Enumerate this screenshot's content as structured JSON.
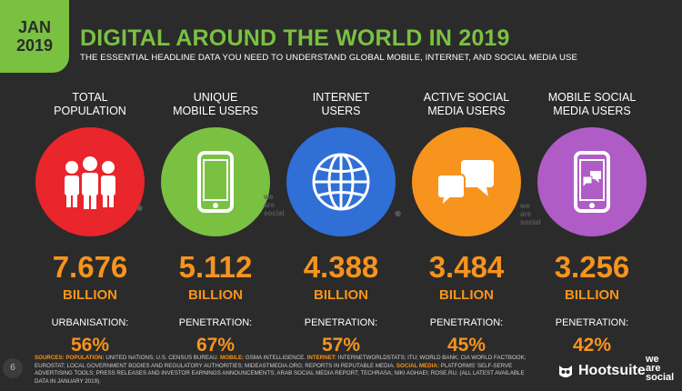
{
  "header": {
    "month": "JAN",
    "year": "2019",
    "title": "DIGITAL AROUND THE WORLD IN 2019",
    "subtitle": "THE ESSENTIAL HEADLINE DATA YOU NEED TO UNDERSTAND GLOBAL MOBILE, INTERNET, AND SOCIAL MEDIA USE"
  },
  "colors": {
    "accent_green": "#7ac142",
    "value_orange": "#f7941d",
    "population_red": "#e8262b",
    "mobile_green": "#7ac142",
    "internet_blue": "#2f6fd6",
    "social_orange": "#f7941d",
    "mobile_social_purple": "#b05cc6"
  },
  "columns": [
    {
      "label_line1": "TOTAL",
      "label_line2": "POPULATION",
      "icon": "people-icon",
      "value": "7.676",
      "unit": "BILLION",
      "metric_label": "URBANISATION:",
      "metric_value": "56%"
    },
    {
      "label_line1": "UNIQUE",
      "label_line2": "MOBILE USERS",
      "icon": "mobile-phone-icon",
      "value": "5.112",
      "unit": "BILLION",
      "metric_label": "PENETRATION:",
      "metric_value": "67%"
    },
    {
      "label_line1": "INTERNET",
      "label_line2": "USERS",
      "icon": "globe-icon",
      "value": "4.388",
      "unit": "BILLION",
      "metric_label": "PENETRATION:",
      "metric_value": "57%"
    },
    {
      "label_line1": "ACTIVE SOCIAL",
      "label_line2": "MEDIA USERS",
      "icon": "chat-bubbles-icon",
      "value": "3.484",
      "unit": "BILLION",
      "metric_label": "PENETRATION:",
      "metric_value": "45%"
    },
    {
      "label_line1": "MOBILE SOCIAL",
      "label_line2": "MEDIA USERS",
      "icon": "mobile-chat-icon",
      "value": "3.256",
      "unit": "BILLION",
      "metric_label": "PENETRATION:",
      "metric_value": "42%"
    }
  ],
  "watermark": {
    "we": "we",
    "are": "are",
    "social": "social"
  },
  "footer": {
    "page_number": "6",
    "sources_label": "SOURCES:",
    "population_label": "POPULATION:",
    "population_text": "UNITED NATIONS; U.S. CENSUS BUREAU.",
    "mobile_label": "MOBILE:",
    "mobile_text": "GSMA INTELLIGENCE.",
    "internet_label": "INTERNET:",
    "internet_text": "INTERNETWORLDSTATS; ITU; WORLD BANK; CIA WORLD FACTBOOK; EUROSTAT; LOCAL GOVERNMENT BODIES AND REGULATORY AUTHORITIES; MIDEASTMEDIA.ORG; REPORTS IN REPUTABLE MEDIA.",
    "social_label": "SOCIAL MEDIA:",
    "social_text": "PLATFORMS' SELF-SERVE ADVERTISING TOOLS; PRESS RELEASES AND INVESTOR EARNINGS ANNOUNCEMENTS; ARAB SOCIAL MEDIA REPORT; TECHRASA; NIKI AGHAEI; ROSE.RU. (ALL LATEST AVAILABLE DATA IN JANUARY 2019).",
    "hootsuite": "Hootsuite",
    "was_we": "we",
    "was_are": "are",
    "was_social": "social"
  }
}
